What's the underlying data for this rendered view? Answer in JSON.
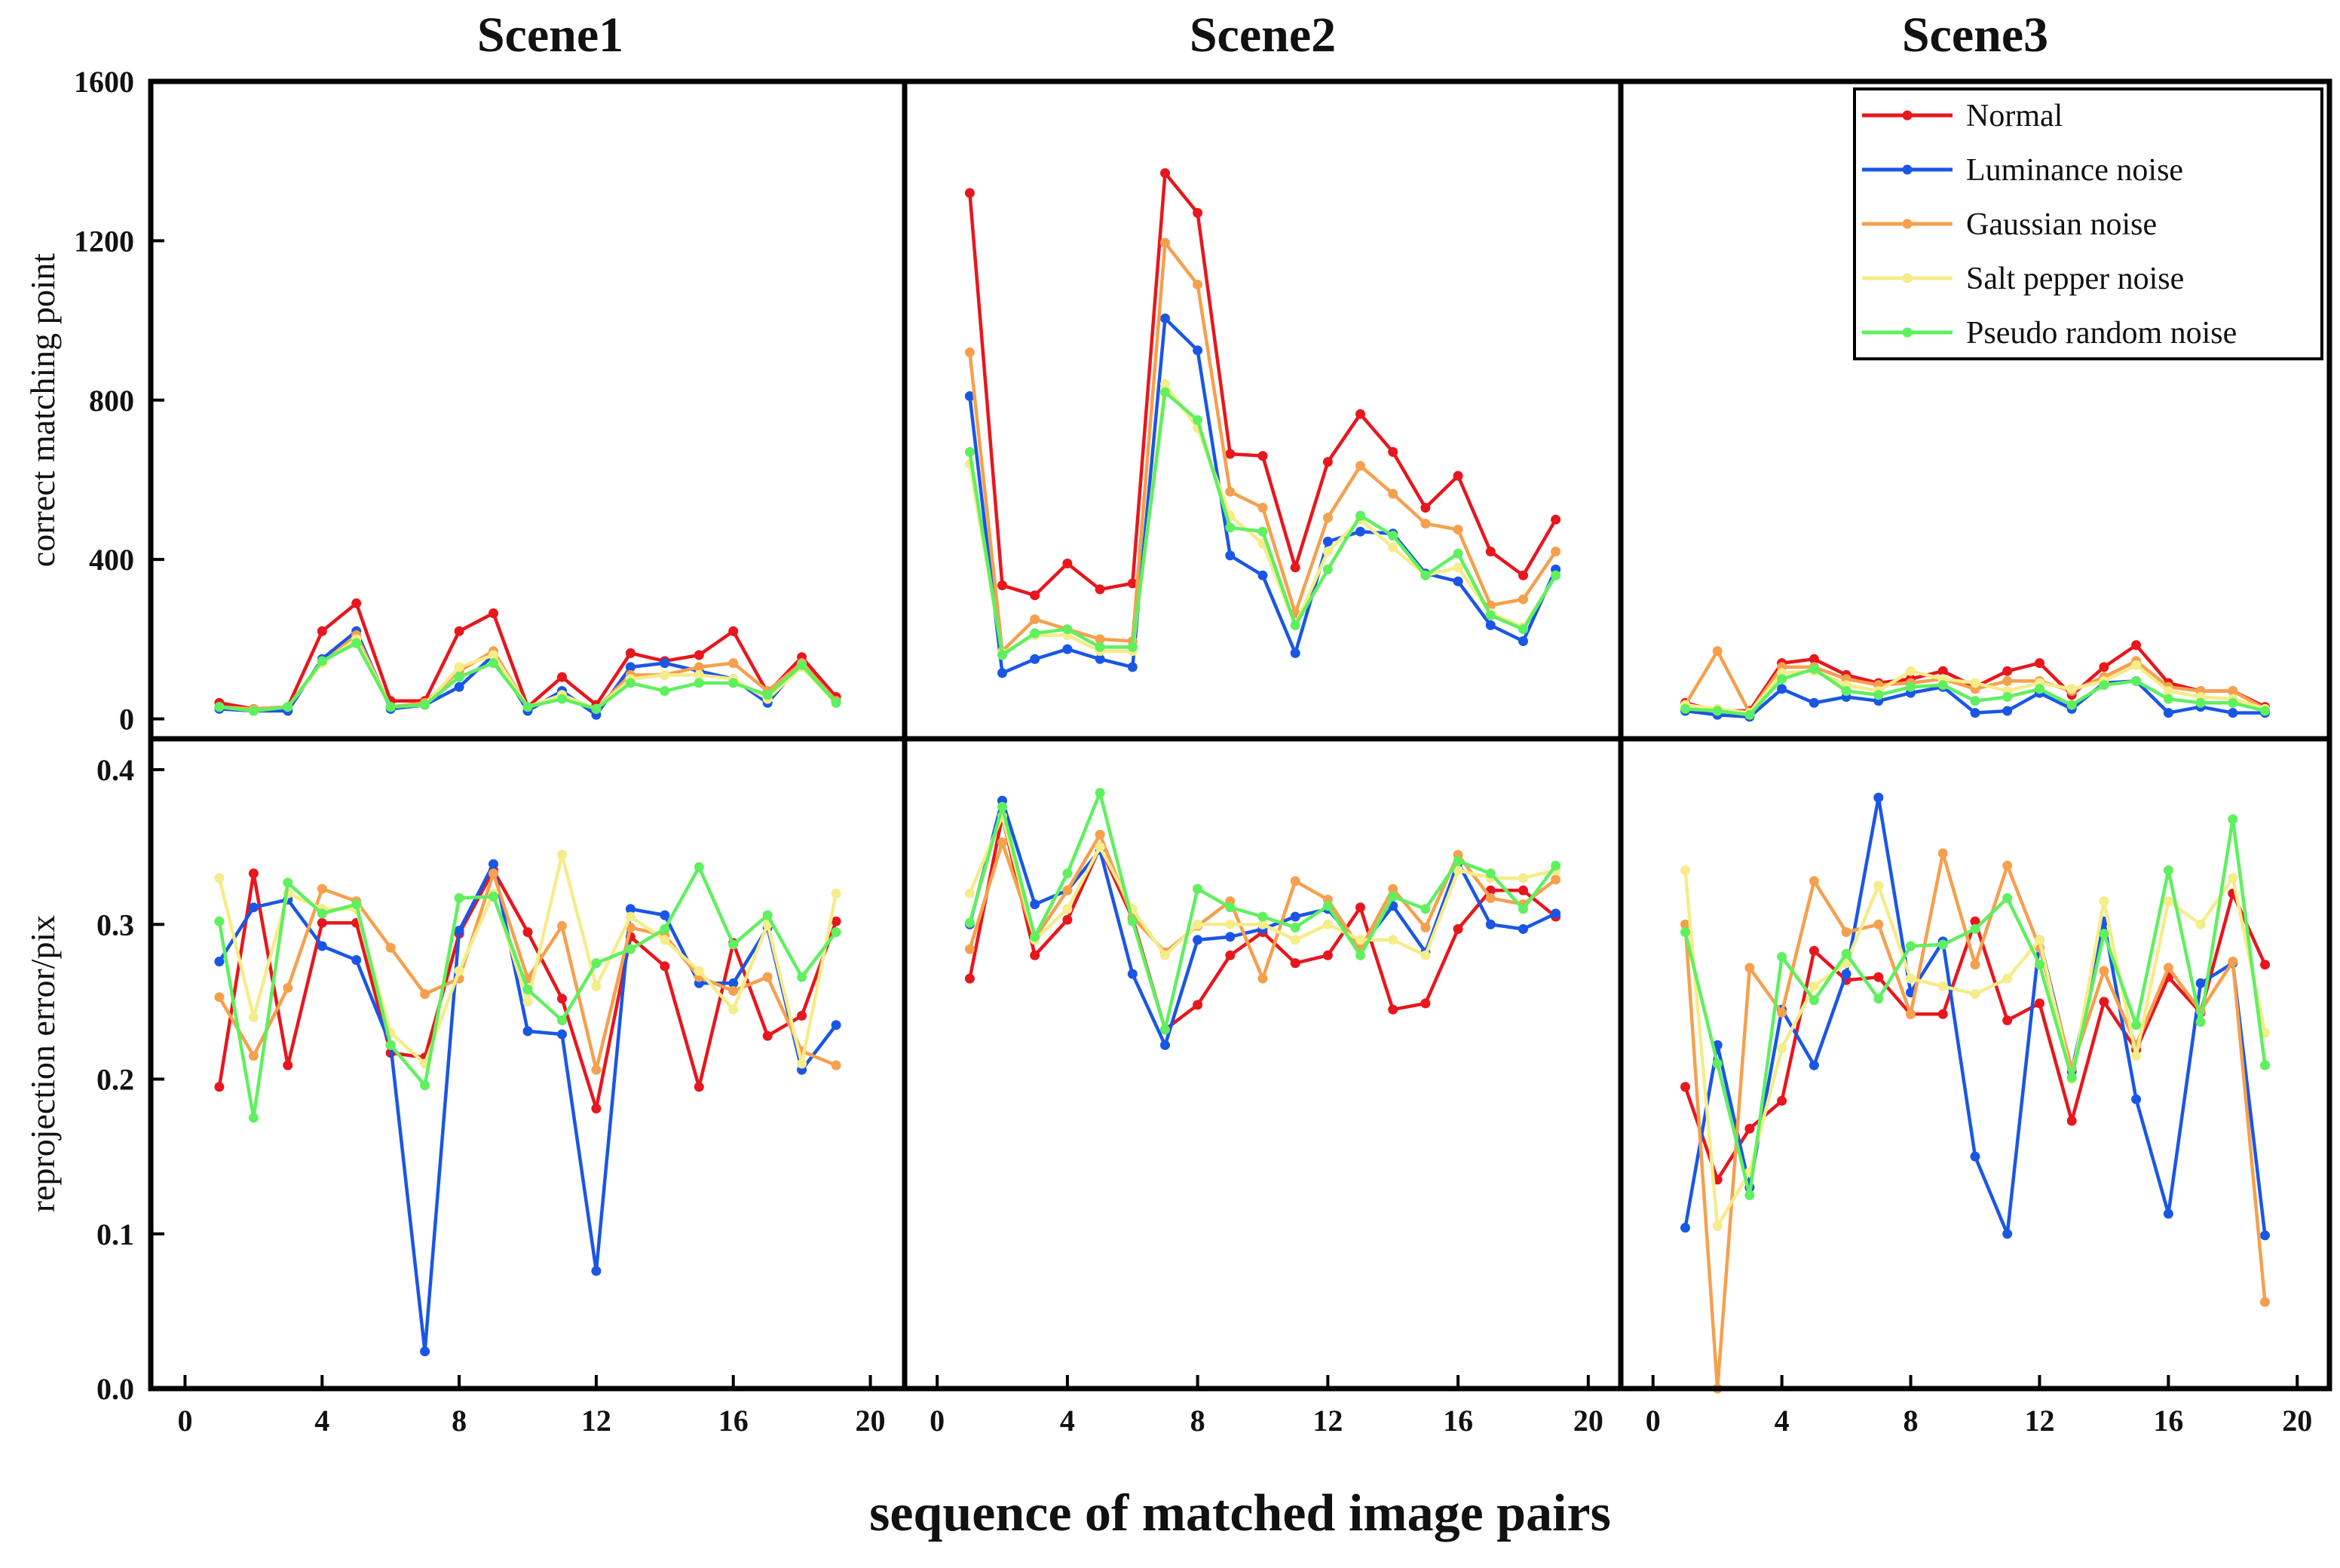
{
  "chart_data": {
    "type": "line",
    "xlabel": "sequence of matched image pairs",
    "panel_titles": [
      "Scene1",
      "Scene2",
      "Scene3"
    ],
    "x_ticks": [
      0,
      4,
      8,
      12,
      16,
      20
    ],
    "xlim": [
      -1,
      21
    ],
    "top": {
      "ylabel": "correct matching point",
      "ylim": [
        -50,
        1600
      ],
      "y_ticks": [
        0,
        400,
        800,
        1200,
        1600
      ]
    },
    "bottom": {
      "ylabel": "reprojection error/pix",
      "ylim": [
        0,
        0.42
      ],
      "y_ticks": [
        0.0,
        0.1,
        0.2,
        0.3,
        0.4
      ],
      "y_tick_labels": [
        "0.0",
        "0.1",
        "0.2",
        "0.3",
        "0.4"
      ]
    },
    "legend": {
      "position": "top-right of Scene3 upper panel",
      "entries": [
        "Normal",
        "Luminance noise",
        "Gaussian noise",
        "Salt pepper noise",
        "Pseudo random noise"
      ]
    },
    "series_colors": [
      "#e8161d",
      "#1a56e6",
      "#f5a04e",
      "#f5ec8a",
      "#5ff05f"
    ],
    "x": [
      1,
      2,
      3,
      4,
      5,
      6,
      7,
      8,
      9,
      10,
      11,
      12,
      13,
      14,
      15,
      16,
      17,
      18,
      19
    ],
    "panels": [
      {
        "scene": "Scene1",
        "top_series": [
          {
            "name": "Normal",
            "values": [
              40,
              25,
              30,
              220,
              290,
              45,
              45,
              220,
              265,
              30,
              105,
              35,
              165,
              145,
              160,
              220,
              65,
              155,
              55
            ]
          },
          {
            "name": "Luminance noise",
            "values": [
              25,
              20,
              20,
              150,
              220,
              25,
              35,
              80,
              160,
              20,
              70,
              10,
              130,
              140,
              120,
              100,
              40,
              140,
              45
            ]
          },
          {
            "name": "Gaussian noise",
            "values": [
              30,
              25,
              30,
              140,
              210,
              30,
              40,
              120,
              170,
              30,
              60,
              25,
              110,
              110,
              130,
              140,
              70,
              140,
              45
            ]
          },
          {
            "name": "Salt pepper noise",
            "values": [
              30,
              20,
              30,
              140,
              200,
              30,
              35,
              130,
              160,
              30,
              60,
              25,
              100,
              110,
              110,
              100,
              50,
              130,
              40
            ]
          },
          {
            "name": "Pseudo random noise",
            "values": [
              30,
              20,
              30,
              145,
              190,
              30,
              35,
              105,
              140,
              30,
              50,
              25,
              90,
              70,
              90,
              90,
              60,
              135,
              40
            ]
          }
        ],
        "bottom_series": [
          {
            "name": "Normal",
            "values": [
              0.195,
              0.333,
              0.209,
              0.301,
              0.301,
              0.217,
              0.214,
              0.294,
              0.335,
              0.295,
              0.252,
              0.181,
              0.292,
              0.273,
              0.195,
              0.288,
              0.228,
              0.241,
              0.302
            ]
          },
          {
            "name": "Luminance noise",
            "values": [
              0.276,
              0.311,
              0.316,
              0.286,
              0.277,
              0.222,
              0.024,
              0.296,
              0.339,
              0.231,
              0.229,
              0.076,
              0.31,
              0.306,
              0.262,
              0.262,
              0.298,
              0.206,
              0.235
            ]
          },
          {
            "name": "Gaussian noise",
            "values": [
              0.253,
              0.215,
              0.259,
              0.323,
              0.315,
              0.285,
              0.255,
              0.265,
              0.333,
              0.265,
              0.299,
              0.206,
              0.298,
              0.293,
              0.266,
              0.257,
              0.266,
              0.218,
              0.209
            ]
          },
          {
            "name": "Salt pepper noise",
            "values": [
              0.33,
              0.24,
              0.32,
              0.31,
              0.31,
              0.23,
              0.21,
              0.27,
              0.32,
              0.25,
              0.345,
              0.26,
              0.305,
              0.29,
              0.27,
              0.245,
              0.3,
              0.21,
              0.32
            ]
          },
          {
            "name": "Pseudo random noise",
            "values": [
              0.302,
              0.175,
              0.327,
              0.307,
              0.313,
              0.222,
              0.196,
              0.317,
              0.318,
              0.258,
              0.238,
              0.275,
              0.284,
              0.297,
              0.337,
              0.287,
              0.306,
              0.266,
              0.295
            ]
          }
        ]
      },
      {
        "scene": "Scene2",
        "top_series": [
          {
            "name": "Normal",
            "values": [
              1320,
              335,
              310,
              390,
              325,
              340,
              1370,
              1270,
              665,
              660,
              380,
              645,
              765,
              670,
              530,
              610,
              420,
              360,
              500
            ]
          },
          {
            "name": "Luminance noise",
            "values": [
              810,
              115,
              150,
              175,
              150,
              130,
              1005,
              925,
              410,
              360,
              165,
              445,
              470,
              465,
              365,
              345,
              235,
              195,
              375
            ]
          },
          {
            "name": "Gaussian noise",
            "values": [
              920,
              170,
              250,
              225,
              200,
              195,
              1195,
              1090,
              570,
              530,
              265,
              505,
              635,
              565,
              490,
              475,
              285,
              300,
              420
            ]
          },
          {
            "name": "Salt pepper noise",
            "values": [
              640,
              165,
              210,
              210,
              170,
              170,
              840,
              730,
              510,
              440,
              235,
              420,
              500,
              430,
              360,
              380,
              265,
              230,
              360
            ]
          },
          {
            "name": "Pseudo random noise",
            "values": [
              670,
              160,
              215,
              225,
              180,
              180,
              820,
              750,
              480,
              470,
              235,
              375,
              510,
              460,
              360,
              415,
              260,
              225,
              360
            ]
          }
        ],
        "bottom_series": [
          {
            "name": "Normal",
            "values": [
              0.265,
              0.37,
              0.28,
              0.303,
              0.35,
              0.304,
              0.232,
              0.248,
              0.28,
              0.295,
              0.275,
              0.28,
              0.311,
              0.245,
              0.249,
              0.297,
              0.322,
              0.322,
              0.305
            ]
          },
          {
            "name": "Luminance noise",
            "values": [
              0.3,
              0.38,
              0.313,
              0.322,
              0.348,
              0.268,
              0.222,
              0.29,
              0.292,
              0.297,
              0.305,
              0.31,
              0.285,
              0.312,
              0.282,
              0.34,
              0.3,
              0.297,
              0.307
            ]
          },
          {
            "name": "Gaussian noise",
            "values": [
              0.284,
              0.353,
              0.291,
              0.322,
              0.358,
              0.305,
              0.282,
              0.299,
              0.315,
              0.265,
              0.328,
              0.316,
              0.284,
              0.323,
              0.298,
              0.345,
              0.317,
              0.313,
              0.329
            ]
          },
          {
            "name": "Salt pepper noise",
            "values": [
              0.32,
              0.37,
              0.29,
              0.31,
              0.35,
              0.31,
              0.28,
              0.3,
              0.3,
              0.3,
              0.29,
              0.3,
              0.29,
              0.29,
              0.28,
              0.335,
              0.33,
              0.33,
              0.335
            ]
          },
          {
            "name": "Pseudo random noise",
            "values": [
              0.301,
              0.376,
              0.292,
              0.333,
              0.385,
              0.302,
              0.232,
              0.323,
              0.311,
              0.305,
              0.298,
              0.312,
              0.28,
              0.318,
              0.31,
              0.341,
              0.333,
              0.31,
              0.338
            ]
          }
        ]
      },
      {
        "scene": "Scene3",
        "top_series": [
          {
            "name": "Normal",
            "values": [
              40,
              20,
              20,
              140,
              150,
              110,
              90,
              100,
              120,
              80,
              120,
              140,
              60,
              130,
              185,
              90,
              70,
              70,
              30
            ]
          },
          {
            "name": "Luminance noise",
            "values": [
              20,
              10,
              5,
              75,
              40,
              55,
              45,
              65,
              80,
              15,
              20,
              65,
              25,
              90,
              95,
              15,
              30,
              15,
              15
            ]
          },
          {
            "name": "Gaussian noise",
            "values": [
              35,
              170,
              15,
              130,
              130,
              100,
              85,
              90,
              100,
              75,
              95,
              95,
              70,
              105,
              145,
              80,
              70,
              70,
              25
            ]
          },
          {
            "name": "Salt pepper noise",
            "values": [
              35,
              25,
              15,
              115,
              120,
              85,
              70,
              120,
              100,
              90,
              70,
              90,
              75,
              95,
              135,
              70,
              55,
              50,
              25
            ]
          },
          {
            "name": "Pseudo random noise",
            "values": [
              25,
              20,
              10,
              100,
              125,
              70,
              60,
              80,
              85,
              45,
              55,
              75,
              35,
              85,
              95,
              50,
              40,
              40,
              20
            ]
          }
        ],
        "bottom_series": [
          {
            "name": "Normal",
            "values": [
              0.195,
              0.135,
              0.168,
              0.186,
              0.283,
              0.264,
              0.266,
              0.242,
              0.242,
              0.302,
              0.238,
              0.249,
              0.173,
              0.25,
              0.219,
              0.266,
              0.243,
              0.32,
              0.274
            ]
          },
          {
            "name": "Luminance noise",
            "values": [
              0.104,
              0.222,
              0.13,
              0.245,
              0.209,
              0.268,
              0.382,
              0.256,
              0.289,
              0.15,
              0.1,
              0.29,
              0.205,
              0.302,
              0.187,
              0.113,
              0.262,
              0.275,
              0.099
            ]
          },
          {
            "name": "Gaussian noise",
            "values": [
              0.3,
              0.0,
              0.272,
              0.243,
              0.328,
              0.295,
              0.3,
              0.242,
              0.346,
              0.274,
              0.338,
              0.285,
              0.207,
              0.27,
              0.222,
              0.272,
              0.244,
              0.276,
              0.056
            ]
          },
          {
            "name": "Salt pepper noise",
            "values": [
              0.335,
              0.105,
              0.14,
              0.22,
              0.26,
              0.275,
              0.325,
              0.265,
              0.26,
              0.255,
              0.265,
              0.29,
              0.2,
              0.315,
              0.215,
              0.315,
              0.3,
              0.33,
              0.23
            ]
          },
          {
            "name": "Pseudo random noise",
            "values": [
              0.295,
              0.21,
              0.125,
              0.279,
              0.251,
              0.281,
              0.252,
              0.286,
              0.287,
              0.297,
              0.317,
              0.274,
              0.201,
              0.294,
              0.235,
              0.335,
              0.237,
              0.368,
              0.209
            ]
          }
        ]
      }
    ]
  }
}
